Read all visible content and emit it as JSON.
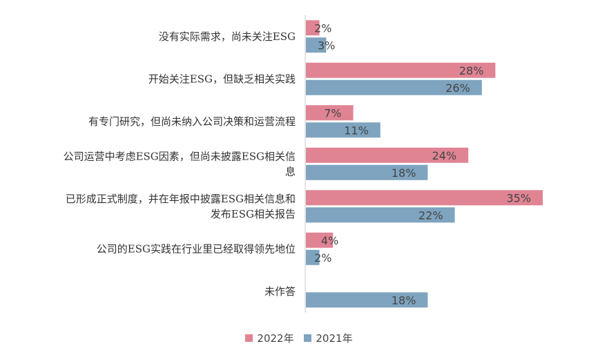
{
  "chart_data": {
    "type": "bar",
    "orientation": "horizontal",
    "categories": [
      [
        "没有实际需求，尚未关注ESG"
      ],
      [
        "开始关注ESG，但缺乏相关实践"
      ],
      [
        "有专门研究，但尚未纳入公司决策和运营流程"
      ],
      [
        "公司运营中考虑ESG因素，但尚未披露ESG相关信",
        "息"
      ],
      [
        "已形成正式制度，并在年报中披露ESG相关信息和",
        "发布ESG相关报告"
      ],
      [
        "公司的ESG实践在行业里已经取得领先地位"
      ],
      [
        "未作答"
      ]
    ],
    "series": [
      {
        "name": "2022年",
        "color": "#e08494",
        "values": [
          2,
          28,
          7,
          24,
          35,
          4,
          null
        ],
        "labels": [
          "2%",
          "28%",
          "7%",
          "24%",
          "35%",
          "4%",
          ""
        ]
      },
      {
        "name": "2021年",
        "color": "#7ea4bf",
        "values": [
          3,
          26,
          11,
          18,
          22,
          2,
          18
        ],
        "labels": [
          "3%",
          "26%",
          "11%",
          "18%",
          "22%",
          "2%",
          "18%"
        ]
      }
    ],
    "xlim": [
      0,
      35
    ],
    "grid": false,
    "legend": "bottom-center"
  }
}
